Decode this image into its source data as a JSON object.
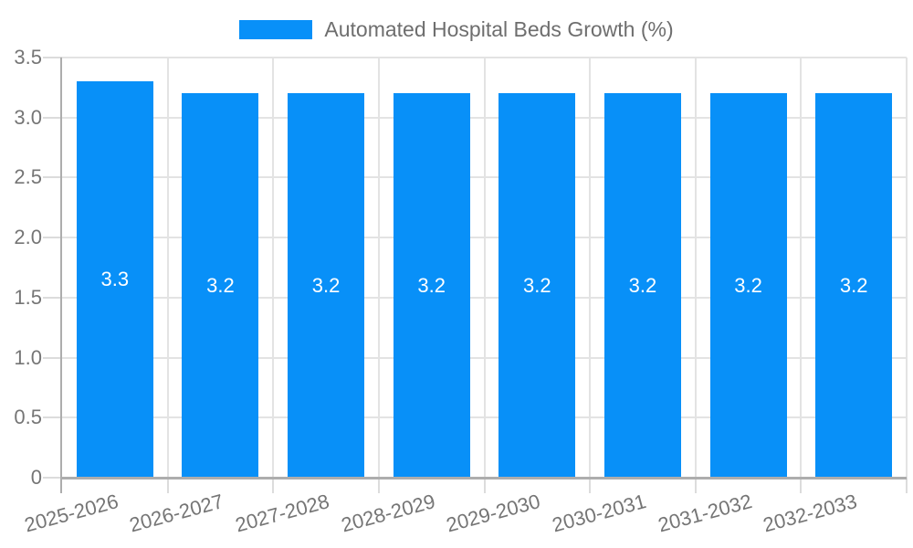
{
  "chart_data": {
    "type": "bar",
    "title": "Automated Hospital Beds Growth (%)",
    "legend": {
      "position": "top",
      "entries": [
        "Automated Hospital Beds Growth (%)"
      ]
    },
    "categories": [
      "2025-2026",
      "2026-2027",
      "2027-2028",
      "2028-2029",
      "2029-2030",
      "2030-2031",
      "2031-2032",
      "2032-2033"
    ],
    "values": [
      3.3,
      3.2,
      3.2,
      3.2,
      3.2,
      3.2,
      3.2,
      3.2
    ],
    "value_labels": [
      "3.3",
      "3.2",
      "3.2",
      "3.2",
      "3.2",
      "3.2",
      "3.2",
      "3.2"
    ],
    "xlabel": "",
    "ylabel": "",
    "ylim": [
      0,
      3.5
    ],
    "y_ticks": [
      "0",
      "0.5",
      "1.0",
      "1.5",
      "2.0",
      "2.5",
      "3.0",
      "3.5"
    ],
    "grid": true,
    "x_label_rotation_deg": -15,
    "colors": {
      "bar": "#0890F8",
      "bar_label": "#FFFFFF",
      "gridline": "#E3E3E3",
      "tick": "#DCDCDC",
      "axis_line": "#ADADAD",
      "tick_label": "#757575",
      "legend_text": "#6E6E6E",
      "background": "#FFFFFF"
    }
  }
}
